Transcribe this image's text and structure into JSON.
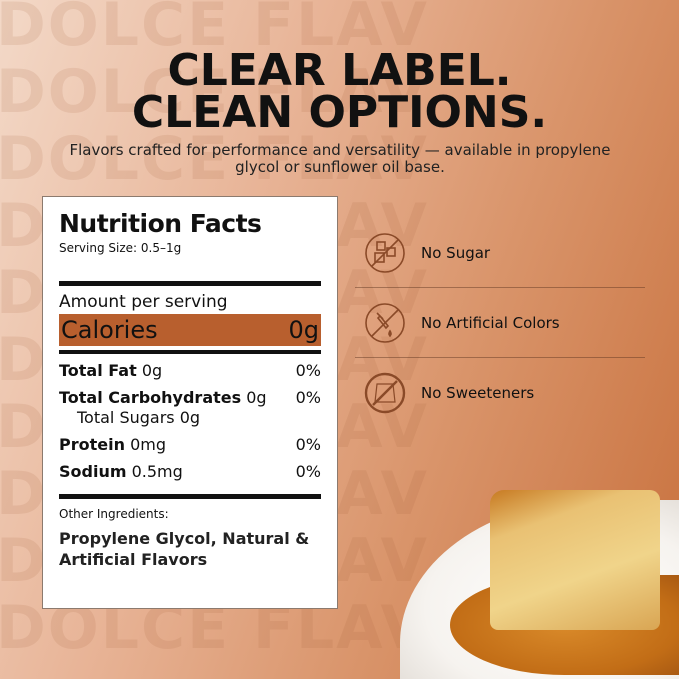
{
  "watermark": "DOLCE FLAV",
  "headline": [
    "CLEAR LABEL.",
    "CLEAN OPTIONS."
  ],
  "subtitle": "Flavors crafted for performance and versatility — available in propylene glycol or sunflower oil base.",
  "nutrition": {
    "title": "Nutrition Facts",
    "serving": "Serving Size: 0.5–1g",
    "amount": "Amount per serving",
    "calories_label": "Calories",
    "calories_value": "0g",
    "rows": [
      {
        "label": "Total Fat",
        "amount": "0g",
        "dv": "0%"
      },
      {
        "label": "Total Carbohydrates",
        "amount": "0g",
        "dv": "0%"
      },
      {
        "label": "Protein",
        "amount": "0mg",
        "dv": "0%"
      },
      {
        "label": "Sodium",
        "amount": "0.5mg",
        "dv": "0%"
      }
    ],
    "sub_row": "Total Sugars 0g",
    "other_label": "Other Ingredients:",
    "ingredients": "Propylene Glycol, Natural & Artificial Flavors"
  },
  "claims": [
    {
      "icon": "no-sugar-cubes-icon",
      "label": "No Sugar"
    },
    {
      "icon": "no-dropper-icon",
      "label": "No Artificial Colors"
    },
    {
      "icon": "no-sweetener-packet-icon",
      "label": "No Sweeteners"
    }
  ],
  "colors": {
    "accent": "#b85f2e",
    "icon": "#8a4a28"
  }
}
